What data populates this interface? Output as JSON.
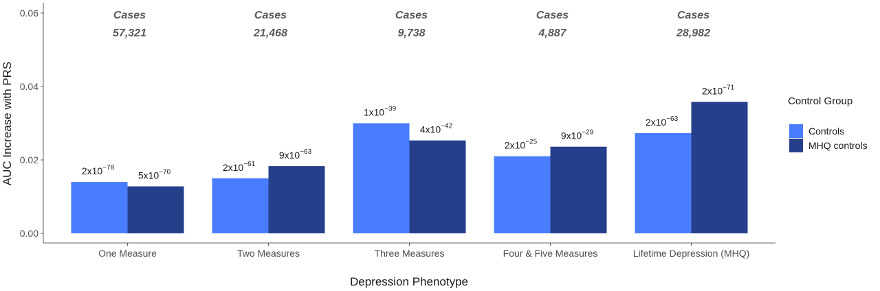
{
  "chart_data": {
    "type": "bar",
    "xlabel": "Depression Phenotype",
    "ylabel": "AUC Increase with PRS",
    "ylim": [
      0,
      0.06
    ],
    "y_ticks": [
      0.0,
      0.02,
      0.04,
      0.06
    ],
    "y_tick_labels": [
      "0.00",
      "0.02",
      "0.04",
      "0.06"
    ],
    "grid": false,
    "categories": [
      "One Measure",
      "Two Measures",
      "Three Measures",
      "Four & Five Measures",
      "Lifetime Depression (MHQ)"
    ],
    "cases_heading": "Cases",
    "cases": [
      "57,321",
      "21,468",
      "9,738",
      "4,887",
      "28,982"
    ],
    "series": [
      {
        "name": "Controls",
        "color": "#4a7cff",
        "values": [
          0.014,
          0.015,
          0.03,
          0.021,
          0.0273
        ],
        "p_labels": [
          {
            "mantissa": "2x10",
            "exp": "−78"
          },
          {
            "mantissa": "2x10",
            "exp": "−61"
          },
          {
            "mantissa": "1x10",
            "exp": "−39"
          },
          {
            "mantissa": "2x10",
            "exp": "−25"
          },
          {
            "mantissa": "2x10",
            "exp": "−63"
          }
        ]
      },
      {
        "name": "MHQ controls",
        "color": "#253f8b",
        "values": [
          0.0128,
          0.0183,
          0.0253,
          0.0236,
          0.0358
        ],
        "p_labels": [
          {
            "mantissa": "5x10",
            "exp": "−70"
          },
          {
            "mantissa": "9x10",
            "exp": "−63"
          },
          {
            "mantissa": "4x10",
            "exp": "−42"
          },
          {
            "mantissa": "9x10",
            "exp": "−29"
          },
          {
            "mantissa": "2x10",
            "exp": "−71"
          }
        ]
      }
    ],
    "legend": {
      "title": "Control Group",
      "position": "right"
    }
  }
}
